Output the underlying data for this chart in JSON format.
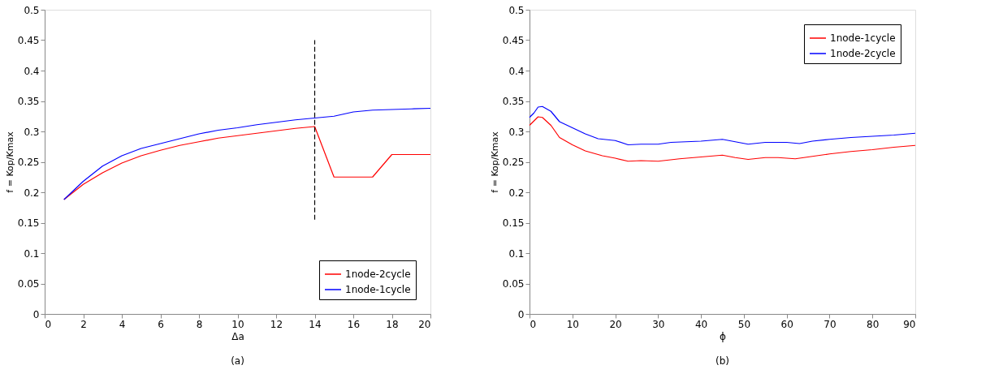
{
  "chart_data": [
    {
      "type": "line",
      "xlabel": "Δa",
      "ylabel": "f = Kop/Kmax",
      "annotations": [
        "(a)"
      ],
      "xlim": [
        0,
        20
      ],
      "xticks": [
        0,
        2,
        4,
        6,
        8,
        10,
        12,
        14,
        16,
        18,
        20
      ],
      "ylim": [
        0,
        0.5
      ],
      "yticks": [
        0,
        0.05,
        0.1,
        0.15,
        0.2,
        0.25,
        0.3,
        0.35,
        0.4,
        0.45,
        0.5
      ],
      "grid": false,
      "legend": "bottom right",
      "x": [
        1,
        2,
        3,
        4,
        5,
        6,
        7,
        8,
        9,
        10,
        11,
        12,
        13,
        14,
        15,
        16,
        17,
        18,
        19,
        20
      ],
      "series": [
        {
          "name": "1node-2cycle",
          "color": "#ff0000",
          "values": [
            0.188,
            0.213,
            0.232,
            0.248,
            0.26,
            0.269,
            0.277,
            0.283,
            0.289,
            0.293,
            0.297,
            0.301,
            0.305,
            0.308,
            0.225,
            0.225,
            0.225,
            0.262,
            0.262,
            0.262
          ]
        },
        {
          "name": "1node-1cycle",
          "color": "#0000ff",
          "values": [
            0.188,
            0.218,
            0.243,
            0.26,
            0.272,
            0.28,
            0.288,
            0.296,
            0.302,
            0.306,
            0.311,
            0.315,
            0.319,
            0.322,
            0.325,
            0.332,
            0.335,
            0.336,
            0.337,
            0.338
          ]
        },
        {
          "color": "#000000",
          "line_style": "dashed",
          "x": [
            14,
            14
          ],
          "values": [
            0.155,
            0.45
          ]
        }
      ]
    },
    {
      "type": "line",
      "xlabel": "ϕ",
      "ylabel": "f = Kop/Kmax",
      "annotations": [
        "(b)"
      ],
      "xlim": [
        0,
        90
      ],
      "xticks": [
        0,
        10,
        20,
        30,
        40,
        50,
        60,
        70,
        80,
        90
      ],
      "ylim": [
        0,
        0.5
      ],
      "yticks": [
        0,
        0.05,
        0.1,
        0.15,
        0.2,
        0.25,
        0.3,
        0.35,
        0.4,
        0.45,
        0.5
      ],
      "grid": false,
      "legend": "top right",
      "series": [
        {
          "name": "1node-1cycle",
          "color": "#ff0000",
          "x": [
            0,
            2,
            3,
            5,
            7,
            10,
            13,
            17,
            20,
            23,
            26,
            30,
            35,
            40,
            45,
            48,
            51,
            55,
            58,
            62,
            65,
            70,
            75,
            80,
            85,
            90
          ],
          "values": [
            0.31,
            0.324,
            0.323,
            0.31,
            0.29,
            0.278,
            0.268,
            0.26,
            0.256,
            0.251,
            0.252,
            0.251,
            0.255,
            0.258,
            0.261,
            0.257,
            0.254,
            0.257,
            0.257,
            0.255,
            0.258,
            0.263,
            0.267,
            0.27,
            0.274,
            0.277
          ]
        },
        {
          "name": "1node-2cycle",
          "color": "#0000ff",
          "x": [
            0,
            1,
            2,
            3,
            5,
            7,
            10,
            13,
            16,
            20,
            23,
            26,
            30,
            33,
            40,
            45,
            48,
            51,
            55,
            60,
            63,
            66,
            70,
            75,
            80,
            85,
            90
          ],
          "values": [
            0.323,
            0.33,
            0.34,
            0.341,
            0.333,
            0.316,
            0.306,
            0.296,
            0.288,
            0.285,
            0.278,
            0.279,
            0.279,
            0.282,
            0.284,
            0.287,
            0.283,
            0.279,
            0.282,
            0.282,
            0.28,
            0.284,
            0.287,
            0.29,
            0.292,
            0.294,
            0.297
          ]
        }
      ]
    }
  ]
}
